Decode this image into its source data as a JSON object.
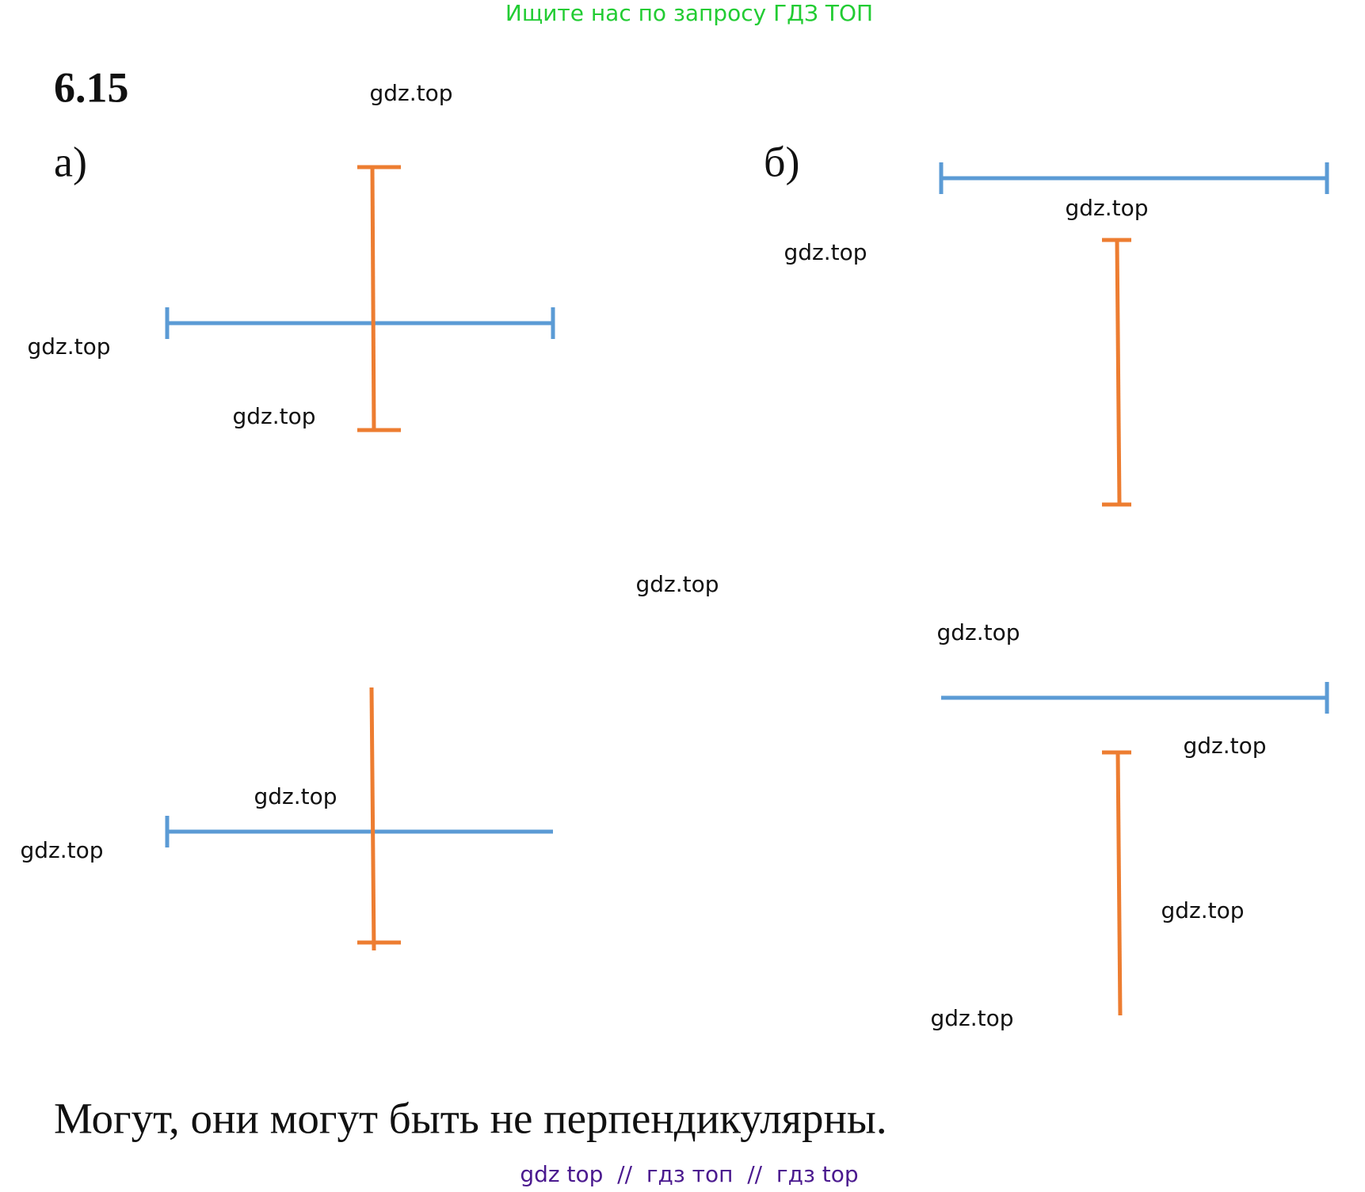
{
  "header": {
    "promo": "Ищите нас по запросу ГДЗ ТОП"
  },
  "problem": {
    "number": "6.15",
    "part_a": "а)",
    "part_b": "б)"
  },
  "watermarks": [
    "gdz.top",
    "gdz.top",
    "gdz.top",
    "gdz.top",
    "gdz.top",
    "gdz.top",
    "gdz.top",
    "gdz.top",
    "gdz.top",
    "gdz.top",
    "gdz.top",
    "gdz.top"
  ],
  "answer": "Могут, они могут быть не перпендикулярны.",
  "footer": "gdz top  //  гдз топ  //  гдз top"
}
